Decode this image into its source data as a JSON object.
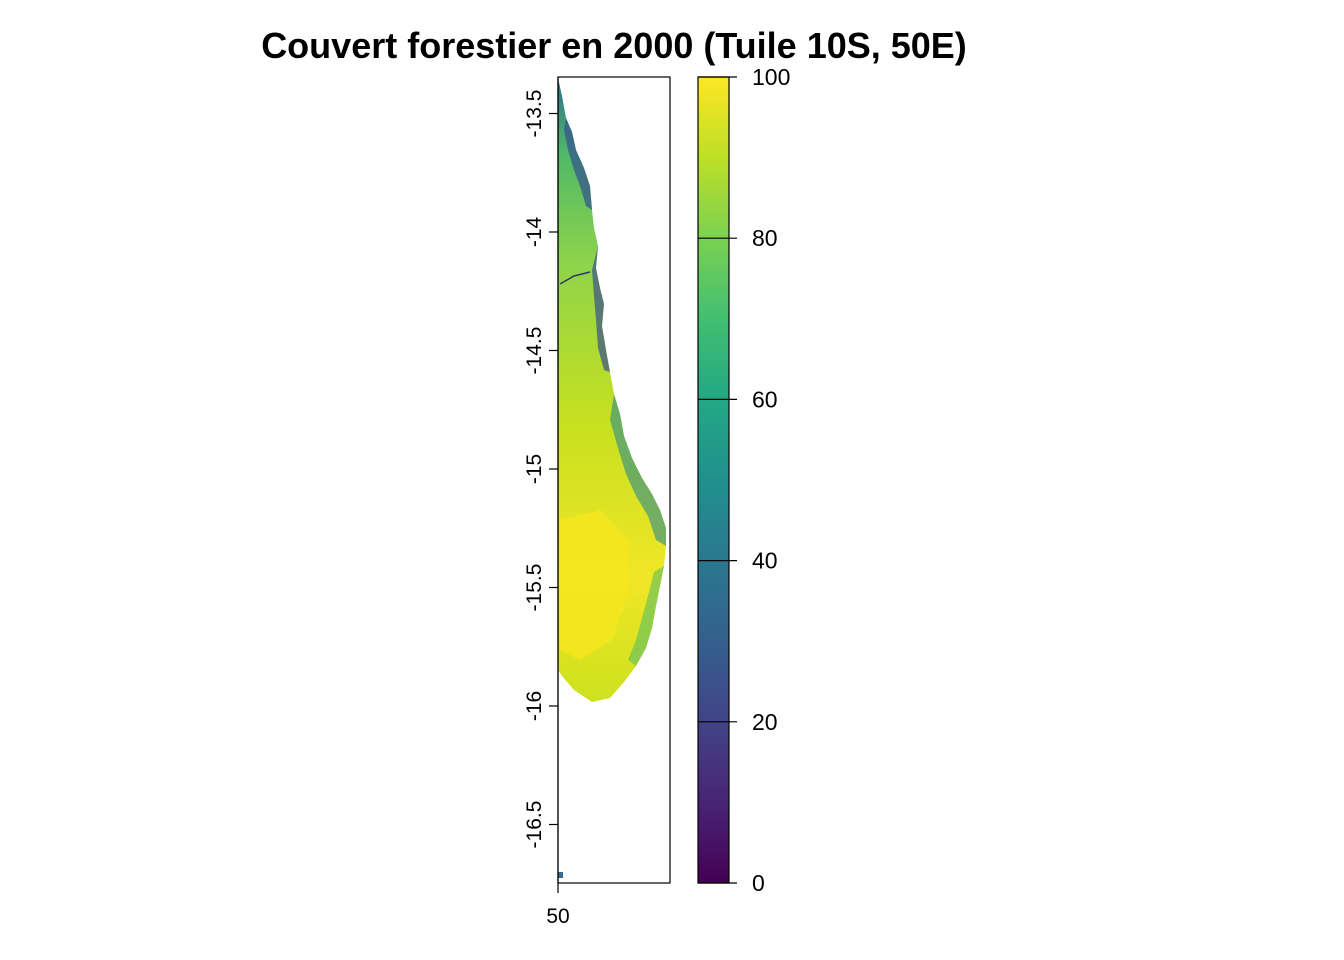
{
  "title": "Couvert forestier en 2000 (Tuile 10S, 50E)",
  "map": {
    "x_axis": {
      "ticks": [
        "50"
      ]
    },
    "y_axis": {
      "ticks": [
        "-13.5",
        "-14",
        "-14.5",
        "-15",
        "-15.5",
        "-16",
        "-16.5"
      ]
    },
    "palette": "viridis",
    "land_color_dominant": "#d8e21c"
  },
  "legend": {
    "ticks": [
      "0",
      "20",
      "40",
      "60",
      "80",
      "100"
    ],
    "colors": [
      "#440154",
      "#3b528b",
      "#21908c",
      "#5dc863",
      "#b5de2b",
      "#fde725"
    ]
  }
}
